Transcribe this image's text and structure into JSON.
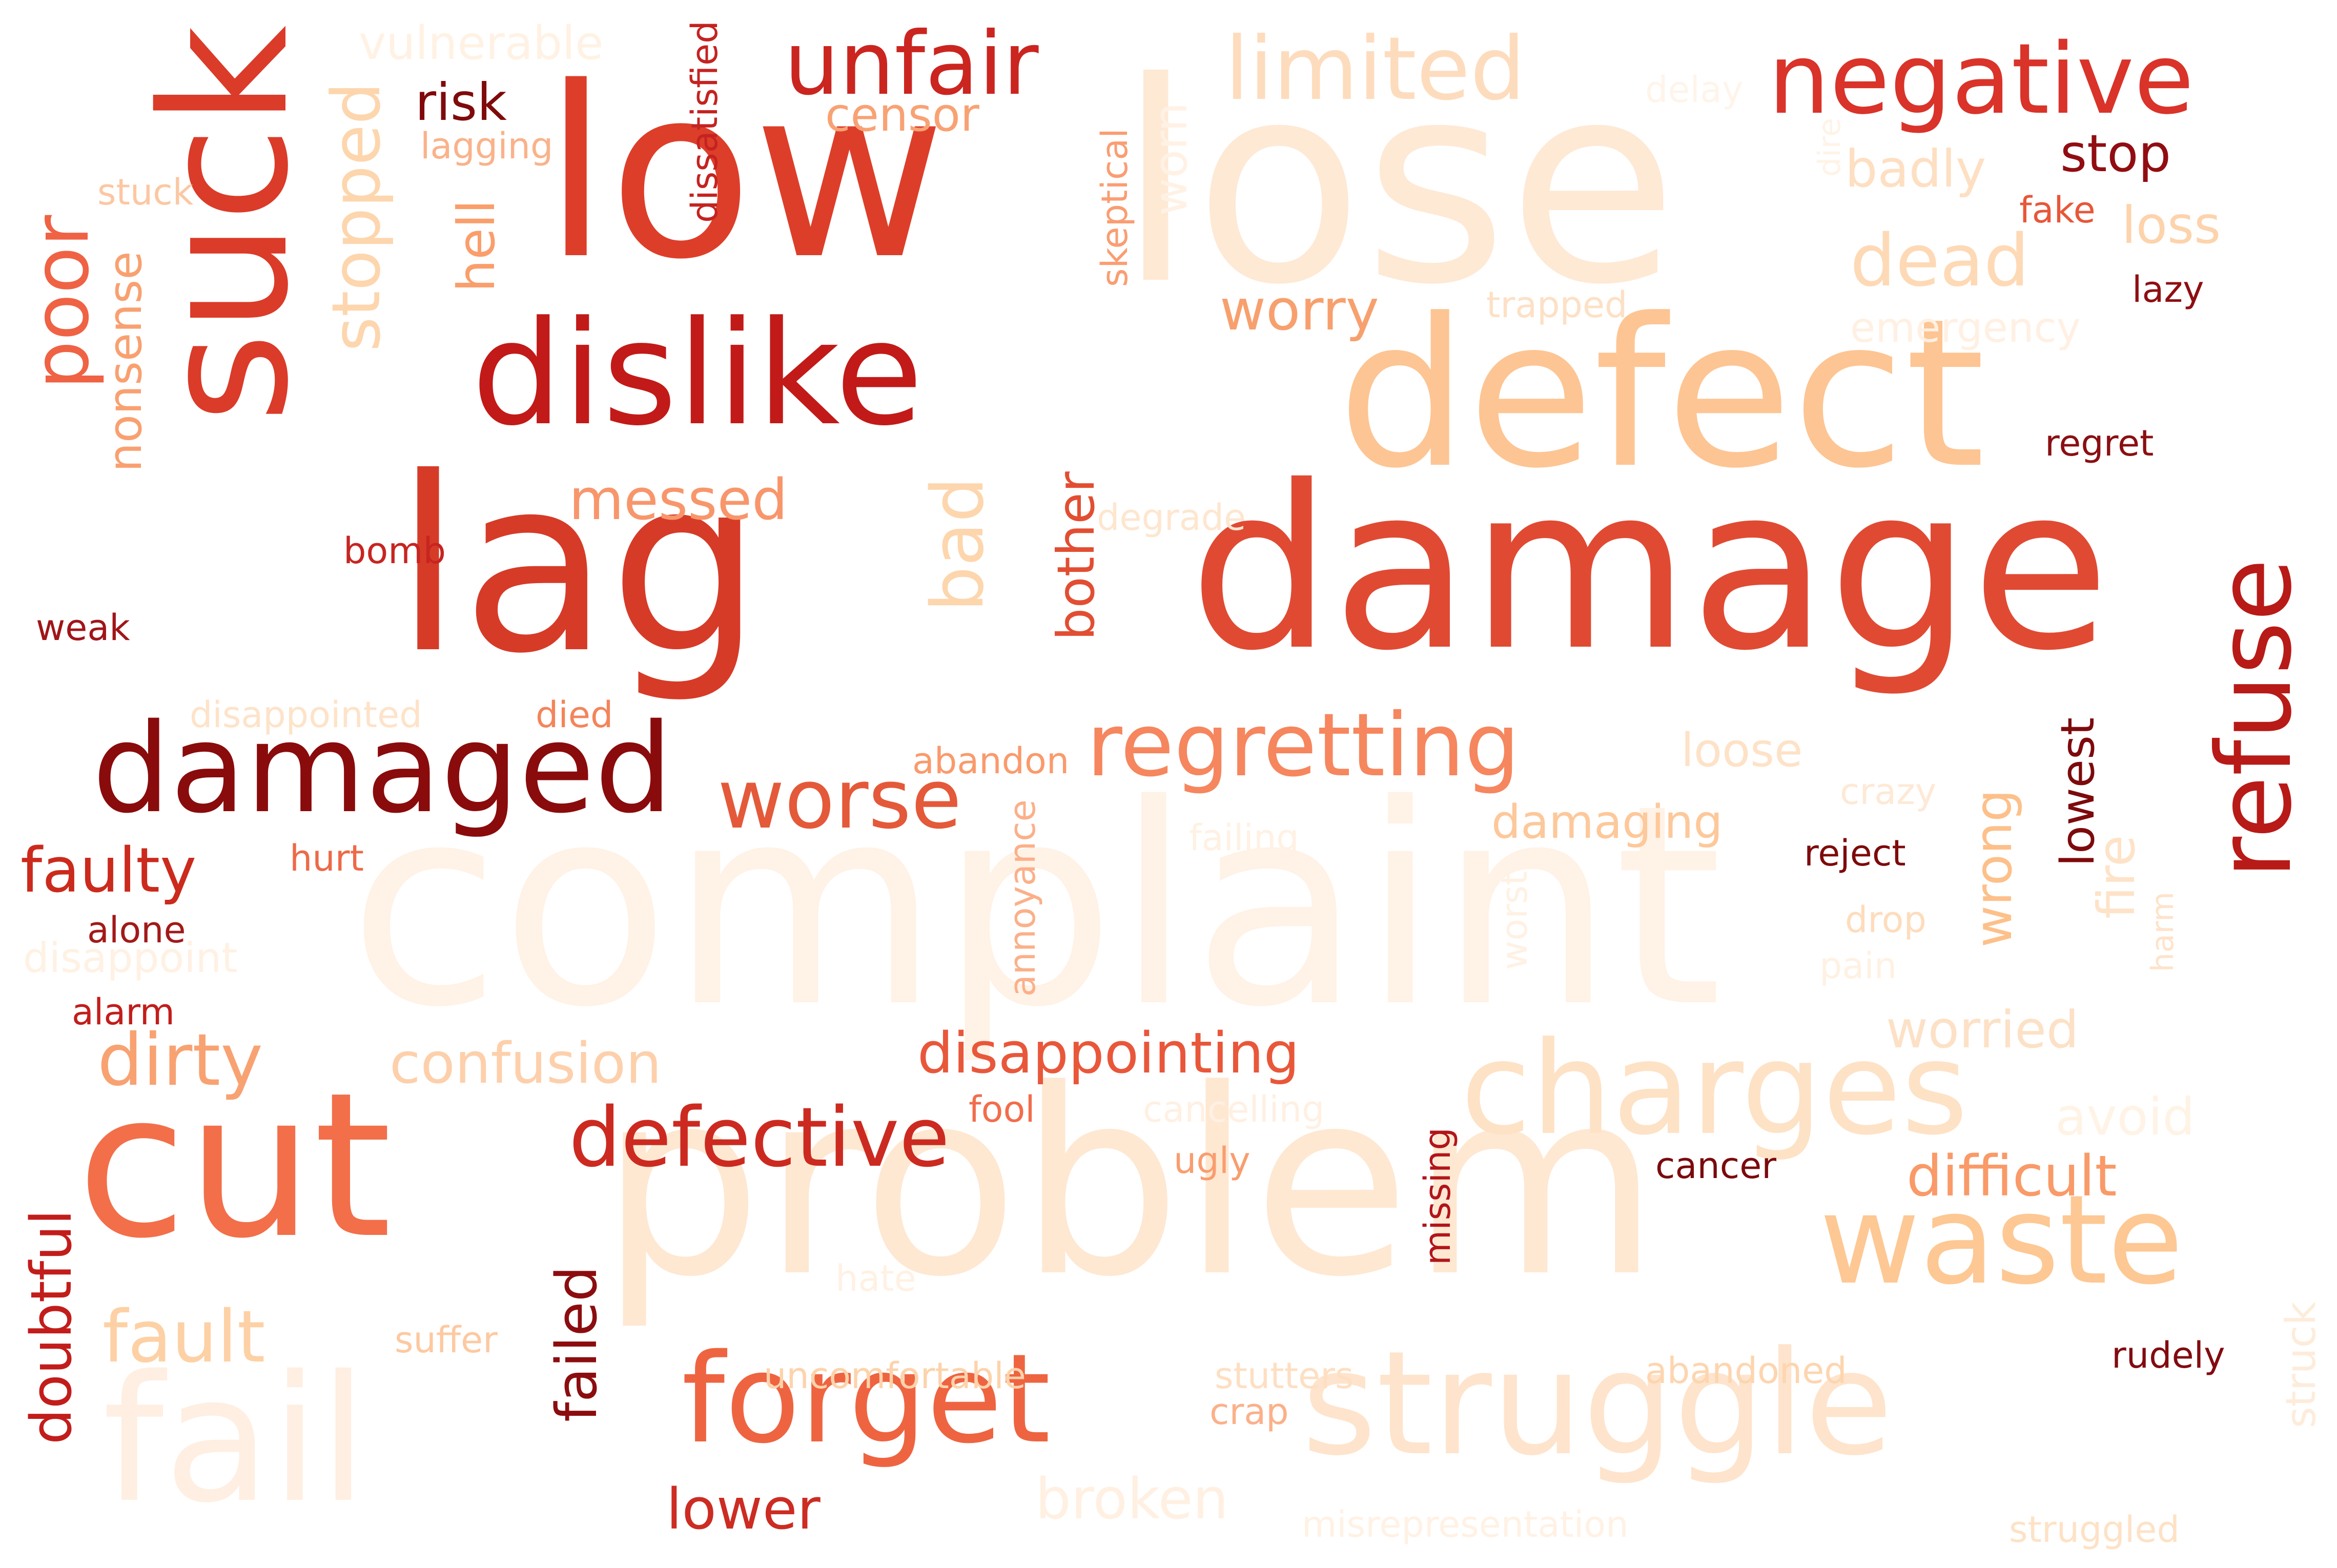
{
  "words": [
    {
      "text": "lose",
      "color": "#fee9d5",
      "vertical": false
    },
    {
      "text": "complaint",
      "color": "#fff2e6",
      "vertical": false
    },
    {
      "text": "problem",
      "color": "#fee8d2",
      "vertical": false
    },
    {
      "text": "damage",
      "color": "#e04a33",
      "vertical": false
    },
    {
      "text": "defect",
      "color": "#fdc593",
      "vertical": false
    },
    {
      "text": "lag",
      "color": "#d63b28",
      "vertical": false
    },
    {
      "text": "low",
      "color": "#dd3e2a",
      "vertical": false
    },
    {
      "text": "suck",
      "color": "#db3b29",
      "vertical": true
    },
    {
      "text": "cut",
      "color": "#f26f4a",
      "vertical": false
    },
    {
      "text": "dislike",
      "color": "#c21a18",
      "vertical": false
    },
    {
      "text": "fail",
      "color": "#feefe2",
      "vertical": false
    },
    {
      "text": "struggle",
      "color": "#fee4cc",
      "vertical": false
    },
    {
      "text": "damaged",
      "color": "#8a0b0c",
      "vertical": false
    },
    {
      "text": "charges",
      "color": "#fee2c6",
      "vertical": false
    },
    {
      "text": "waste",
      "color": "#fdc894",
      "vertical": false
    },
    {
      "text": "forget",
      "color": "#ee6441",
      "vertical": false
    },
    {
      "text": "refuse",
      "color": "#b81a17",
      "vertical": true
    },
    {
      "text": "negative",
      "color": "#d9332a",
      "vertical": false
    },
    {
      "text": "unfair",
      "color": "#cb2520",
      "vertical": false
    },
    {
      "text": "limited",
      "color": "#fddcbd",
      "vertical": false
    },
    {
      "text": "regretting",
      "color": "#f6865e",
      "vertical": false
    },
    {
      "text": "worse",
      "color": "#e45939",
      "vertical": false
    },
    {
      "text": "defective",
      "color": "#cc2a20",
      "vertical": false
    },
    {
      "text": "poor",
      "color": "#ef6244",
      "vertical": true
    },
    {
      "text": "bad",
      "color": "#fdd6ae",
      "vertical": true
    },
    {
      "text": "stopped",
      "color": "#fdd6ae",
      "vertical": true
    },
    {
      "text": "dirty",
      "color": "#f8a272",
      "vertical": false
    },
    {
      "text": "fault",
      "color": "#fdd1a5",
      "vertical": false
    },
    {
      "text": "dead",
      "color": "#fed9b5",
      "vertical": false
    },
    {
      "text": "worry",
      "color": "#f7a06e",
      "vertical": false
    },
    {
      "text": "messed",
      "color": "#f8966b",
      "vertical": false
    },
    {
      "text": "faulty",
      "color": "#cb2a1c",
      "vertical": false
    },
    {
      "text": "difficult",
      "color": "#f99a68",
      "vertical": false
    },
    {
      "text": "confusion",
      "color": "#fdd0ab",
      "vertical": false
    },
    {
      "text": "disappointing",
      "color": "#e9573a",
      "vertical": false
    },
    {
      "text": "doubtful",
      "color": "#c21d1b",
      "vertical": true
    },
    {
      "text": "failed",
      "color": "#8c0d0f",
      "vertical": true
    },
    {
      "text": "lower",
      "color": "#cc2c22",
      "vertical": false
    },
    {
      "text": "broken",
      "color": "#fff0e2",
      "vertical": false
    },
    {
      "text": "worried",
      "color": "#fde1c6",
      "vertical": false
    },
    {
      "text": "stop",
      "color": "#910d12",
      "vertical": false
    },
    {
      "text": "loss",
      "color": "#fdd3ac",
      "vertical": false
    },
    {
      "text": "badly",
      "color": "#fedfc2",
      "vertical": false
    },
    {
      "text": "hell",
      "color": "#fa9e6b",
      "vertical": true
    },
    {
      "text": "nonsense",
      "color": "#f9a070",
      "vertical": true
    },
    {
      "text": "bother",
      "color": "#e24e32",
      "vertical": true
    },
    {
      "text": "risk",
      "color": "#7f0a0b",
      "vertical": false
    },
    {
      "text": "damaging",
      "color": "#fdc89a",
      "vertical": false
    },
    {
      "text": "loose",
      "color": "#fee2c7",
      "vertical": false
    },
    {
      "text": "wrong",
      "color": "#fdc08a",
      "vertical": true
    },
    {
      "text": "lowest",
      "color": "#7d0a0c",
      "vertical": true
    },
    {
      "text": "fire",
      "color": "#fee3c8",
      "vertical": true
    },
    {
      "text": "avoid",
      "color": "#fff3e6",
      "vertical": false
    },
    {
      "text": "vulnerable",
      "color": "#fff2e4",
      "vertical": false
    },
    {
      "text": "censor",
      "color": "#f8a274",
      "vertical": false
    },
    {
      "text": "lagging",
      "color": "#fab28a",
      "vertical": false
    },
    {
      "text": "stuck",
      "color": "#fcc7a2",
      "vertical": false
    },
    {
      "text": "dissatisfied",
      "color": "#c42320",
      "vertical": true
    },
    {
      "text": "skeptical",
      "color": "#fa9d72",
      "vertical": true
    },
    {
      "text": "worn",
      "color": "#fff2e5",
      "vertical": true
    },
    {
      "text": "trapped",
      "color": "#fde0c5",
      "vertical": false
    },
    {
      "text": "emergency",
      "color": "#fff0e3",
      "vertical": false
    },
    {
      "text": "dire",
      "color": "#fff3e7",
      "vertical": true
    },
    {
      "text": "fake",
      "color": "#e75738",
      "vertical": false
    },
    {
      "text": "lazy",
      "color": "#8e0f12",
      "vertical": false
    },
    {
      "text": "delay",
      "color": "#fff4ea",
      "vertical": false
    },
    {
      "text": "regret",
      "color": "#8a0f12",
      "vertical": false
    },
    {
      "text": "degrade",
      "color": "#fee6cf",
      "vertical": false
    },
    {
      "text": "bomb",
      "color": "#c62520",
      "vertical": false
    },
    {
      "text": "weak",
      "color": "#a01518",
      "vertical": false
    },
    {
      "text": "disappointed",
      "color": "#fee3c9",
      "vertical": false
    },
    {
      "text": "died",
      "color": "#f4845a",
      "vertical": false
    },
    {
      "text": "abandon",
      "color": "#fa9a6c",
      "vertical": false
    },
    {
      "text": "crazy",
      "color": "#fee9d6",
      "vertical": false
    },
    {
      "text": "failing",
      "color": "#fff1e3",
      "vertical": false
    },
    {
      "text": "hurt",
      "color": "#ed6a48",
      "vertical": false
    },
    {
      "text": "reject",
      "color": "#7e0a0c",
      "vertical": false
    },
    {
      "text": "alone",
      "color": "#a11a18",
      "vertical": false
    },
    {
      "text": "disappoint",
      "color": "#fff1e3",
      "vertical": false
    },
    {
      "text": "annoyance",
      "color": "#fbb089",
      "vertical": true
    },
    {
      "text": "worst",
      "color": "#fff1e3",
      "vertical": true
    },
    {
      "text": "drop",
      "color": "#fedcbc",
      "vertical": false
    },
    {
      "text": "pain",
      "color": "#fff1e3",
      "vertical": false
    },
    {
      "text": "harm",
      "color": "#fee3ca",
      "vertical": true
    },
    {
      "text": "alarm",
      "color": "#c21d1b",
      "vertical": false
    },
    {
      "text": "fool",
      "color": "#f26d4c",
      "vertical": false
    },
    {
      "text": "cancelling",
      "color": "#fff0e3",
      "vertical": false
    },
    {
      "text": "ugly",
      "color": "#f99d6f",
      "vertical": false
    },
    {
      "text": "missing",
      "color": "#b2151a",
      "vertical": true
    },
    {
      "text": "cancer",
      "color": "#7b0a0d",
      "vertical": false
    },
    {
      "text": "hate",
      "color": "#fff1e3",
      "vertical": false
    },
    {
      "text": "suffer",
      "color": "#fdc9a1",
      "vertical": false
    },
    {
      "text": "uncomfortable",
      "color": "#fdd3ab",
      "vertical": false
    },
    {
      "text": "stutters",
      "color": "#fedfc2",
      "vertical": false
    },
    {
      "text": "crap",
      "color": "#fbb08a",
      "vertical": false
    },
    {
      "text": "abandoned",
      "color": "#fdd5af",
      "vertical": false
    },
    {
      "text": "rudely",
      "color": "#820b10",
      "vertical": false
    },
    {
      "text": "struck",
      "color": "#feecdb",
      "vertical": true
    },
    {
      "text": "misrepresentation",
      "color": "#fff1e4",
      "vertical": false
    },
    {
      "text": "struggled",
      "color": "#fee2c6",
      "vertical": false
    }
  ]
}
